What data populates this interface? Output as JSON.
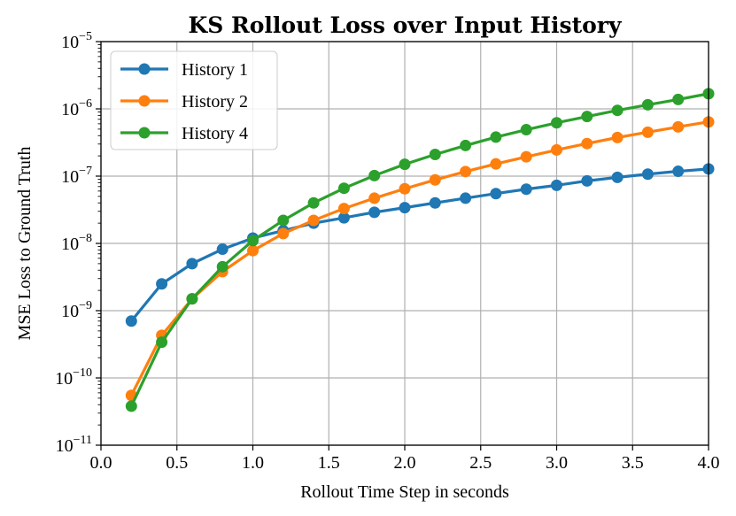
{
  "chart_data": {
    "type": "line",
    "title": "KS Rollout Loss over Input History",
    "xlabel": "Rollout Time Step in seconds",
    "ylabel": "MSE Loss to Ground Truth",
    "xlim": [
      0.0,
      4.0
    ],
    "ylim": [
      1e-11,
      1e-05
    ],
    "yscale": "log",
    "grid": true,
    "legend_position": "upper-left",
    "x_ticks": [
      "0.0",
      "0.5",
      "1.0",
      "1.5",
      "2.0",
      "2.5",
      "3.0",
      "3.5",
      "4.0"
    ],
    "y_ticks": [
      {
        "base": "10",
        "exp": "−11"
      },
      {
        "base": "10",
        "exp": "−10"
      },
      {
        "base": "10",
        "exp": "−9"
      },
      {
        "base": "10",
        "exp": "−8"
      },
      {
        "base": "10",
        "exp": "−7"
      },
      {
        "base": "10",
        "exp": "−6"
      },
      {
        "base": "10",
        "exp": "−5"
      }
    ],
    "x": [
      0.2,
      0.4,
      0.6,
      0.8,
      1.0,
      1.2,
      1.4,
      1.6,
      1.8,
      2.0,
      2.2,
      2.4,
      2.6,
      2.8,
      3.0,
      3.2,
      3.4,
      3.6,
      3.8,
      4.0
    ],
    "series": [
      {
        "name": "History 1",
        "color": "#1f77b4",
        "values": [
          7e-10,
          2.5e-09,
          5e-09,
          8.2e-09,
          1.2e-08,
          1.55e-08,
          2e-08,
          2.4e-08,
          2.9e-08,
          3.4e-08,
          4e-08,
          4.7e-08,
          5.5e-08,
          6.4e-08,
          7.3e-08,
          8.5e-08,
          9.6e-08,
          1.07e-07,
          1.18e-07,
          1.28e-07
        ]
      },
      {
        "name": "History 2",
        "color": "#ff7f0e",
        "values": [
          5.5e-11,
          4.3e-10,
          1.5e-09,
          3.8e-09,
          7.8e-09,
          1.4e-08,
          2.2e-08,
          3.3e-08,
          4.7e-08,
          6.5e-08,
          8.8e-08,
          1.17e-07,
          1.52e-07,
          1.94e-07,
          2.45e-07,
          3.05e-07,
          3.75e-07,
          4.5e-07,
          5.4e-07,
          6.4e-07
        ]
      },
      {
        "name": "History 4",
        "color": "#2ca02c",
        "values": [
          3.8e-11,
          3.4e-10,
          1.5e-09,
          4.5e-09,
          1.1e-08,
          2.2e-08,
          4e-08,
          6.6e-08,
          1.02e-07,
          1.5e-07,
          2.1e-07,
          2.85e-07,
          3.8e-07,
          4.9e-07,
          6.2e-07,
          7.7e-07,
          9.5e-07,
          1.15e-06,
          1.38e-06,
          1.68e-06
        ]
      }
    ]
  }
}
